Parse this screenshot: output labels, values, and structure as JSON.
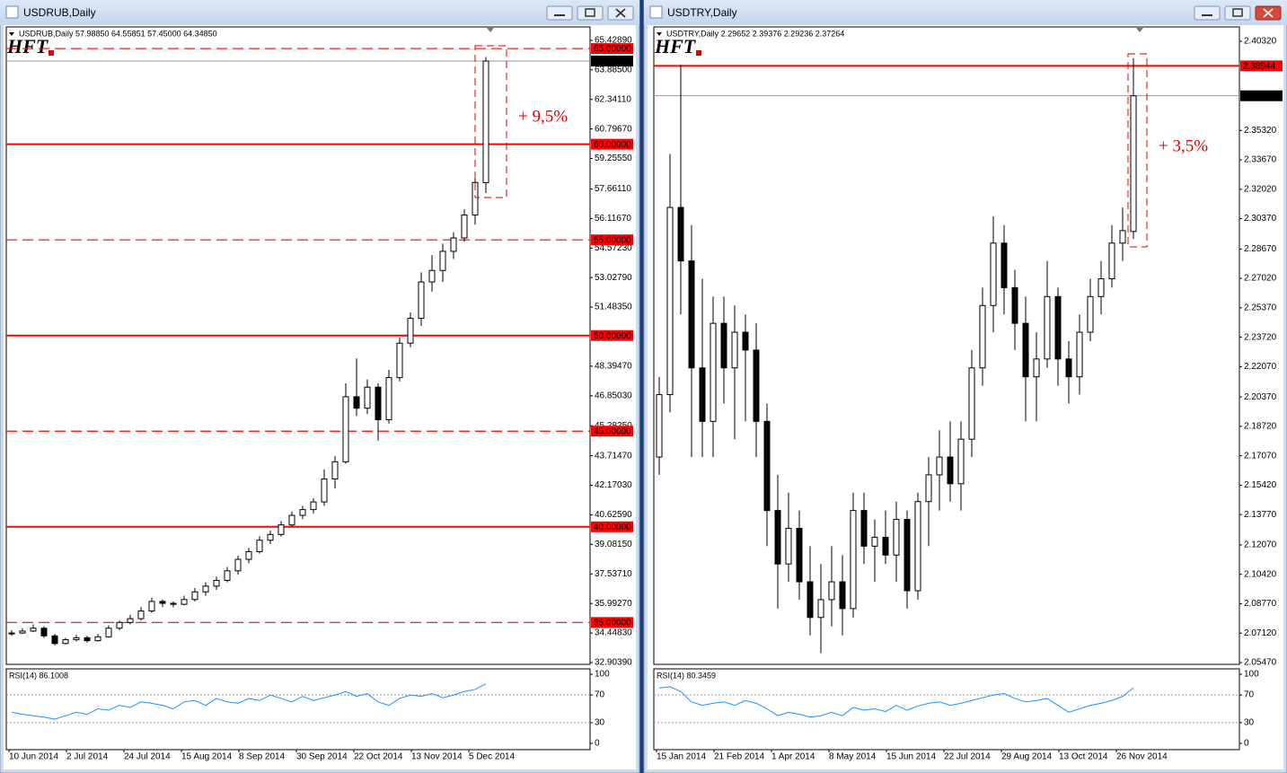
{
  "windows": [
    {
      "title": "USDRUB,Daily",
      "chart": {
        "type": "candlestick",
        "header": "USDRUB,Daily  57.98850 64.55851 57.45000 64.34850",
        "logo": "HFT",
        "bull_color": "#ffffff",
        "bear_color": "#000000",
        "level_color": "#ff0000",
        "ylim": [
          32.81,
          66.13
        ],
        "yticks": [
          {
            "value": 65.4289,
            "label": "65.42890"
          },
          {
            "value": 63.885,
            "label": "63.88500"
          },
          {
            "value": 62.3411,
            "label": "62.34110"
          },
          {
            "value": 60.7967,
            "label": "60.79670"
          },
          {
            "value": 59.2555,
            "label": "59.25550"
          },
          {
            "value": 57.6611,
            "label": "57.66110"
          },
          {
            "value": 56.1167,
            "label": "56.11670"
          },
          {
            "value": 54.5723,
            "label": "54.57230"
          },
          {
            "value": 53.0279,
            "label": "53.02790"
          },
          {
            "value": 51.4835,
            "label": "51.48350"
          },
          {
            "value": 48.3947,
            "label": "48.39470"
          },
          {
            "value": 46.8503,
            "label": "46.85030"
          },
          {
            "value": 45.2825,
            "label": "45.28250"
          },
          {
            "value": 43.7147,
            "label": "43.71470"
          },
          {
            "value": 42.1703,
            "label": "42.17030"
          },
          {
            "value": 40.6259,
            "label": "40.62590"
          },
          {
            "value": 39.0815,
            "label": "39.08150"
          },
          {
            "value": 37.5371,
            "label": "37.53710"
          },
          {
            "value": 35.9927,
            "label": "35.99270"
          },
          {
            "value": 34.4483,
            "label": "34.44830"
          },
          {
            "value": 32.9039,
            "label": "32.90390"
          }
        ],
        "candles": [
          [
            34.4,
            34.6,
            34.3,
            34.45
          ],
          [
            34.45,
            34.7,
            34.4,
            34.55
          ],
          [
            34.55,
            34.9,
            34.5,
            34.7
          ],
          [
            34.7,
            34.8,
            34.2,
            34.3
          ],
          [
            34.3,
            34.4,
            33.8,
            33.9
          ],
          [
            33.9,
            34.2,
            33.85,
            34.1
          ],
          [
            34.1,
            34.35,
            34.0,
            34.2
          ],
          [
            34.2,
            34.3,
            33.95,
            34.05
          ],
          [
            34.05,
            34.4,
            34.0,
            34.25
          ],
          [
            34.25,
            34.85,
            34.2,
            34.7
          ],
          [
            34.7,
            35.1,
            34.6,
            35.0
          ],
          [
            35.0,
            35.4,
            34.9,
            35.2
          ],
          [
            35.2,
            35.8,
            35.1,
            35.6
          ],
          [
            35.6,
            36.3,
            35.5,
            36.1
          ],
          [
            36.1,
            36.2,
            35.8,
            36.0
          ],
          [
            36.0,
            36.1,
            35.8,
            35.95
          ],
          [
            35.95,
            36.4,
            35.9,
            36.2
          ],
          [
            36.2,
            36.8,
            36.1,
            36.6
          ],
          [
            36.6,
            37.1,
            36.4,
            36.9
          ],
          [
            36.9,
            37.4,
            36.7,
            37.2
          ],
          [
            37.2,
            37.9,
            37.1,
            37.7
          ],
          [
            37.7,
            38.5,
            37.5,
            38.3
          ],
          [
            38.3,
            38.9,
            38.1,
            38.7
          ],
          [
            38.7,
            39.5,
            38.6,
            39.3
          ],
          [
            39.3,
            39.8,
            39.1,
            39.6
          ],
          [
            39.6,
            40.3,
            39.5,
            40.1
          ],
          [
            40.1,
            40.8,
            40.0,
            40.6
          ],
          [
            40.6,
            41.1,
            40.4,
            40.9
          ],
          [
            40.9,
            41.5,
            40.7,
            41.3
          ],
          [
            41.3,
            43.0,
            41.1,
            42.5
          ],
          [
            42.5,
            43.7,
            42.0,
            43.4
          ],
          [
            43.4,
            47.5,
            43.3,
            46.8
          ],
          [
            46.8,
            48.8,
            45.8,
            46.2
          ],
          [
            46.2,
            47.7,
            45.9,
            47.3
          ],
          [
            47.3,
            47.5,
            44.5,
            45.6
          ],
          [
            45.6,
            48.2,
            45.4,
            47.8
          ],
          [
            47.8,
            49.9,
            47.6,
            49.6
          ],
          [
            49.6,
            51.2,
            49.4,
            50.9
          ],
          [
            50.9,
            53.3,
            50.5,
            52.8
          ],
          [
            52.8,
            54.2,
            52.3,
            53.4
          ],
          [
            53.4,
            54.8,
            52.8,
            54.4
          ],
          [
            54.4,
            55.4,
            54.0,
            55.1
          ],
          [
            55.1,
            56.6,
            54.9,
            56.3
          ],
          [
            56.3,
            58.4,
            55.8,
            58.0
          ],
          [
            57.9885,
            64.55851,
            57.45,
            64.3485
          ]
        ],
        "levels": [
          {
            "value": 65,
            "label": "65.00000",
            "style": "dashed"
          },
          {
            "value": 60,
            "label": "60.00000",
            "style": "solid"
          },
          {
            "value": 55,
            "label": "55.00000",
            "style": "dashed"
          },
          {
            "value": 50,
            "label": "50.00000",
            "style": "solid"
          },
          {
            "value": 45,
            "label": "45.00000",
            "style": "dashed"
          },
          {
            "value": 40,
            "label": "40.00000",
            "style": "solid"
          },
          {
            "value": 35,
            "label": "35.00000",
            "style": "dashed"
          }
        ],
        "current": {
          "value": 64.3485,
          "label": "64.34850"
        },
        "annotation": "+ 9,5%",
        "dates": [
          "10 Jun 2014",
          "2 Jul 2014",
          "24 Jul 2014",
          "15 Aug 2014",
          "8 Sep 2014",
          "30 Sep 2014",
          "22 Oct 2014",
          "13 Nov 2014",
          "5 Dec 2014"
        ],
        "rsi": {
          "header": "RSI(14) 86.1008",
          "color": "#1e90ff",
          "ylim": [
            -9.1,
            107.8
          ],
          "yticks": [
            100,
            70,
            30,
            0
          ],
          "dotted": [
            70,
            30
          ],
          "values": [
            45,
            42,
            40,
            38,
            35,
            40,
            45,
            42,
            50,
            48,
            55,
            52,
            60,
            58,
            55,
            50,
            60,
            62,
            55,
            65,
            60,
            58,
            65,
            62,
            70,
            65,
            60,
            68,
            62,
            66,
            70,
            75,
            68,
            72,
            60,
            55,
            65,
            70,
            68,
            72,
            66,
            70,
            75,
            78,
            86.1008
          ]
        }
      }
    },
    {
      "title": "USDTRY,Daily",
      "chart": {
        "type": "candlestick",
        "header": "USDTRY,Daily  2.29652 2.39376 2.29236 2.37264",
        "logo": "HFT",
        "bull_color": "#ffffff",
        "bear_color": "#000000",
        "level_color": "#ff0000",
        "ylim": [
          2.05369,
          2.41126
        ],
        "yticks": [
          {
            "value": 2.4032,
            "label": "2.40320"
          },
          {
            "value": 2.3532,
            "label": "2.35320"
          },
          {
            "value": 2.3367,
            "label": "2.33670"
          },
          {
            "value": 2.3202,
            "label": "2.32020"
          },
          {
            "value": 2.3037,
            "label": "2.30370"
          },
          {
            "value": 2.2867,
            "label": "2.28670"
          },
          {
            "value": 2.2702,
            "label": "2.27020"
          },
          {
            "value": 2.2537,
            "label": "2.25370"
          },
          {
            "value": 2.2372,
            "label": "2.23720"
          },
          {
            "value": 2.2207,
            "label": "2.22070"
          },
          {
            "value": 2.2037,
            "label": "2.20370"
          },
          {
            "value": 2.1872,
            "label": "2.18720"
          },
          {
            "value": 2.1707,
            "label": "2.17070"
          },
          {
            "value": 2.1542,
            "label": "2.15420"
          },
          {
            "value": 2.1377,
            "label": "2.13770"
          },
          {
            "value": 2.1207,
            "label": "2.12070"
          },
          {
            "value": 2.1042,
            "label": "2.10420"
          },
          {
            "value": 2.0877,
            "label": "2.08770"
          },
          {
            "value": 2.0712,
            "label": "2.07120"
          },
          {
            "value": 2.0547,
            "label": "2.05470"
          }
        ],
        "candles": [
          [
            2.17,
            2.215,
            2.16,
            2.205
          ],
          [
            2.205,
            2.34,
            2.195,
            2.31
          ],
          [
            2.31,
            2.39,
            2.25,
            2.28
          ],
          [
            2.28,
            2.3,
            2.17,
            2.22
          ],
          [
            2.22,
            2.27,
            2.17,
            2.19
          ],
          [
            2.19,
            2.26,
            2.17,
            2.245
          ],
          [
            2.245,
            2.26,
            2.2,
            2.22
          ],
          [
            2.22,
            2.255,
            2.18,
            2.24
          ],
          [
            2.24,
            2.25,
            2.19,
            2.23
          ],
          [
            2.23,
            2.245,
            2.17,
            2.19
          ],
          [
            2.19,
            2.2,
            2.12,
            2.14
          ],
          [
            2.14,
            2.16,
            2.085,
            2.11
          ],
          [
            2.11,
            2.15,
            2.1,
            2.13
          ],
          [
            2.13,
            2.14,
            2.09,
            2.1
          ],
          [
            2.1,
            2.12,
            2.07,
            2.08
          ],
          [
            2.08,
            2.11,
            2.06,
            2.09
          ],
          [
            2.09,
            2.12,
            2.075,
            2.1
          ],
          [
            2.1,
            2.115,
            2.07,
            2.085
          ],
          [
            2.085,
            2.15,
            2.08,
            2.14
          ],
          [
            2.14,
            2.15,
            2.11,
            2.12
          ],
          [
            2.12,
            2.135,
            2.1,
            2.125
          ],
          [
            2.125,
            2.14,
            2.11,
            2.115
          ],
          [
            2.115,
            2.145,
            2.1,
            2.135
          ],
          [
            2.135,
            2.14,
            2.085,
            2.095
          ],
          [
            2.095,
            2.15,
            2.09,
            2.145
          ],
          [
            2.145,
            2.17,
            2.12,
            2.16
          ],
          [
            2.16,
            2.185,
            2.14,
            2.17
          ],
          [
            2.17,
            2.19,
            2.145,
            2.155
          ],
          [
            2.155,
            2.19,
            2.14,
            2.18
          ],
          [
            2.18,
            2.23,
            2.17,
            2.22
          ],
          [
            2.22,
            2.265,
            2.21,
            2.255
          ],
          [
            2.255,
            2.305,
            2.24,
            2.29
          ],
          [
            2.29,
            2.3,
            2.25,
            2.265
          ],
          [
            2.265,
            2.275,
            2.23,
            2.245
          ],
          [
            2.245,
            2.26,
            2.19,
            2.215
          ],
          [
            2.215,
            2.24,
            2.19,
            2.225
          ],
          [
            2.225,
            2.28,
            2.22,
            2.26
          ],
          [
            2.26,
            2.265,
            2.21,
            2.225
          ],
          [
            2.225,
            2.235,
            2.2,
            2.215
          ],
          [
            2.215,
            2.25,
            2.205,
            2.24
          ],
          [
            2.24,
            2.27,
            2.235,
            2.26
          ],
          [
            2.26,
            2.28,
            2.25,
            2.27
          ],
          [
            2.27,
            2.3,
            2.265,
            2.29
          ],
          [
            2.29,
            2.31,
            2.28,
            2.297
          ],
          [
            2.29652,
            2.39376,
            2.29236,
            2.37264
          ]
        ],
        "levels": [
          {
            "value": 2.38944,
            "label": "2.38944",
            "style": "solid"
          }
        ],
        "current": {
          "value": 2.37264,
          "label": "2.37264"
        },
        "annotation": "+ 3,5%",
        "dates": [
          "15 Jan 2014",
          "21 Feb 2014",
          "1 Apr 2014",
          "8 May 2014",
          "15 Jun 2014",
          "22 Jul 2014",
          "29 Aug 2014",
          "13 Oct 2014",
          "26 Nov 2014"
        ],
        "rsi": {
          "header": "RSI(14) 80.3459",
          "color": "#1e90ff",
          "ylim": [
            -9.1,
            107.8
          ],
          "yticks": [
            100,
            70,
            30,
            0
          ],
          "dotted": [
            70,
            30
          ],
          "values": [
            80,
            82,
            75,
            60,
            55,
            58,
            60,
            55,
            62,
            58,
            50,
            40,
            45,
            42,
            38,
            40,
            45,
            40,
            52,
            48,
            50,
            46,
            55,
            48,
            54,
            58,
            60,
            55,
            58,
            62,
            66,
            70,
            72,
            65,
            60,
            62,
            65,
            55,
            45,
            50,
            55,
            58,
            62,
            68,
            80.3459
          ]
        }
      }
    }
  ]
}
